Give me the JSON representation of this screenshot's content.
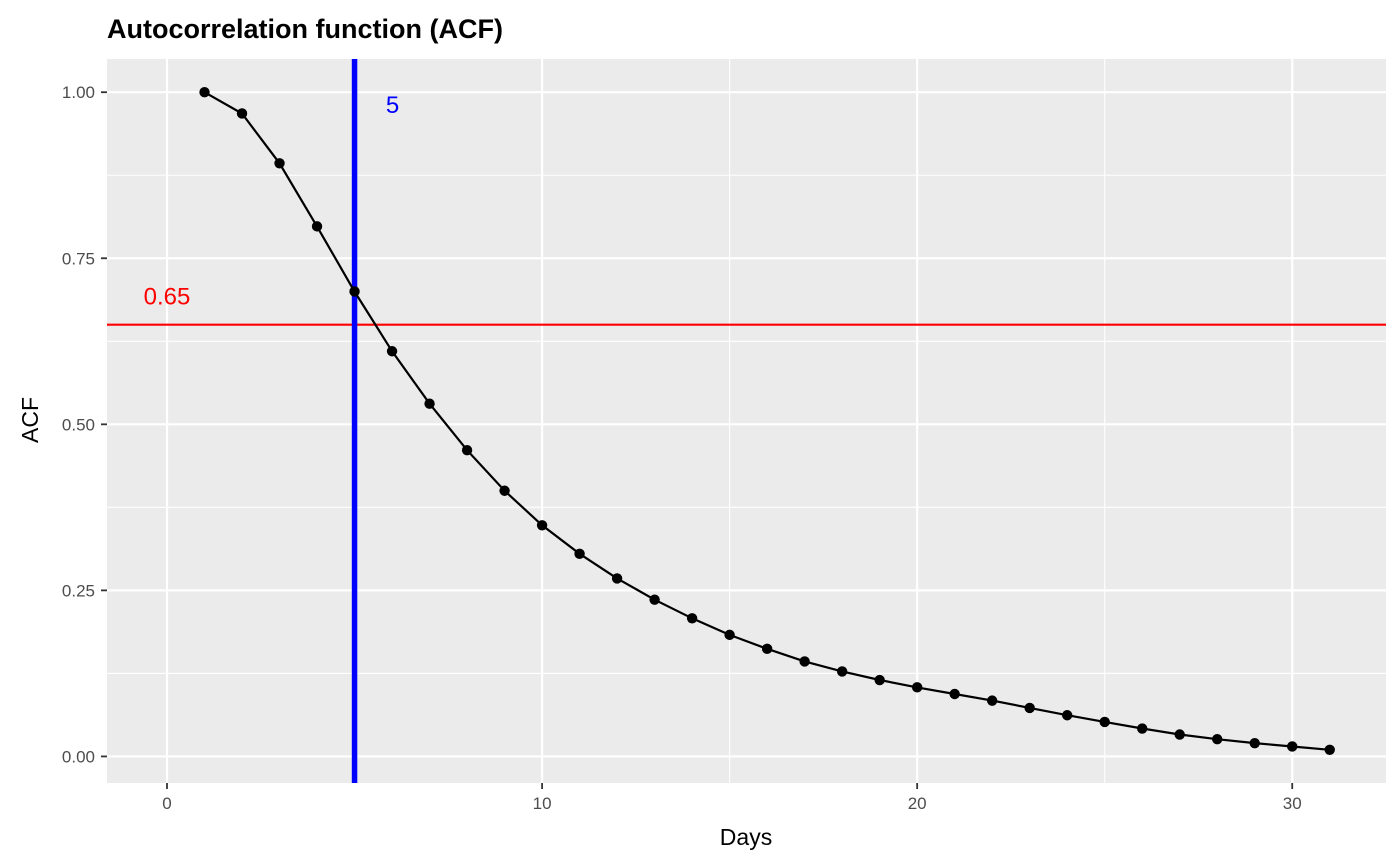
{
  "chart_data": {
    "type": "line",
    "title": "Autocorrelation function (ACF)",
    "xlabel": "Days",
    "ylabel": "ACF",
    "xlim": [
      -1.6,
      32.5
    ],
    "ylim": [
      -0.04,
      1.05
    ],
    "x_ticks": [
      0,
      10,
      20,
      30
    ],
    "x_tick_labels": [
      "0",
      "10",
      "20",
      "30"
    ],
    "x_minor_ticks": [
      5,
      15,
      25
    ],
    "y_ticks": [
      0.0,
      0.25,
      0.5,
      0.75,
      1.0
    ],
    "y_tick_labels": [
      "0.00",
      "0.25",
      "0.50",
      "0.75",
      "1.00"
    ],
    "y_minor_ticks": [
      0.125,
      0.375,
      0.625,
      0.875
    ],
    "grid": true,
    "panel_background": "#ebebeb",
    "series": [
      {
        "color": "#000000",
        "x": [
          1,
          2,
          3,
          4,
          5,
          6,
          7,
          8,
          9,
          10,
          11,
          12,
          13,
          14,
          15,
          16,
          17,
          18,
          19,
          20,
          21,
          22,
          23,
          24,
          25,
          26,
          27,
          28,
          29,
          30,
          31
        ],
        "y": [
          1.0,
          0.968,
          0.893,
          0.798,
          0.7,
          0.61,
          0.531,
          0.461,
          0.4,
          0.348,
          0.305,
          0.268,
          0.236,
          0.208,
          0.183,
          0.162,
          0.143,
          0.128,
          0.115,
          0.104,
          0.094,
          0.084,
          0.073,
          0.062,
          0.052,
          0.042,
          0.033,
          0.026,
          0.02,
          0.015,
          0.01
        ]
      }
    ],
    "hline": {
      "y": 0.65,
      "color": "#ff0000",
      "label": "0.65",
      "label_x": 0
    },
    "vline": {
      "x": 5,
      "color": "#0000ff",
      "label": "5",
      "label_y": 0.99
    }
  }
}
